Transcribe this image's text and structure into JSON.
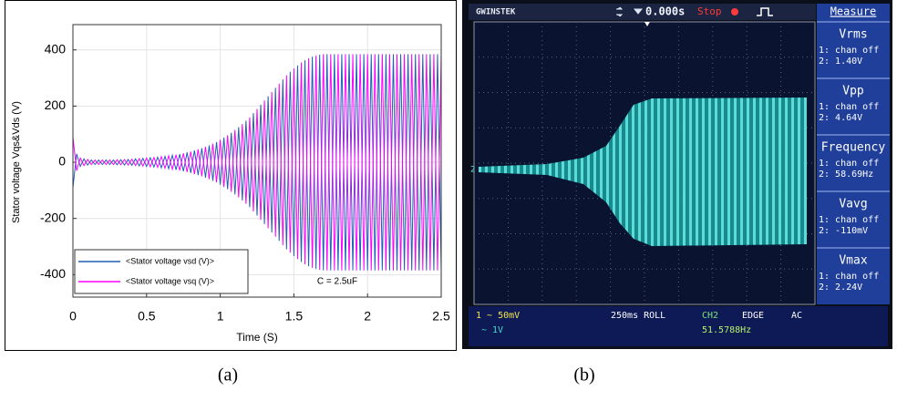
{
  "chart_data": {
    "type": "line",
    "x_label": "Time (S)",
    "y_label": "Stator voltage Vqs&Vds (V)",
    "annotation": "C = 2.5uF",
    "xlim": [
      0,
      2.5
    ],
    "ylim": [
      -480,
      490
    ],
    "xticks": [
      0,
      0.5,
      1,
      1.5,
      2,
      2.5
    ],
    "yticks": [
      -400,
      -200,
      0,
      200,
      400
    ],
    "grid": true,
    "legend_position": "lower-left",
    "x": [
      0,
      0.025,
      0.05,
      0.075,
      0.1,
      0.125,
      0.15,
      0.175,
      0.2,
      0.225,
      0.25,
      0.275,
      0.3,
      0.325,
      0.35,
      0.375,
      0.4,
      0.425,
      0.45,
      0.475,
      0.5,
      0.525,
      0.55,
      0.575,
      0.6,
      0.625,
      0.65,
      0.675,
      0.7,
      0.725,
      0.75,
      0.775,
      0.8,
      0.825,
      0.85,
      0.875,
      0.9,
      0.925,
      0.95,
      0.975,
      1,
      1.025,
      1.05,
      1.075,
      1.1,
      1.125,
      1.15,
      1.175,
      1.2,
      1.225,
      1.25,
      1.275,
      1.3,
      1.325,
      1.35,
      1.375,
      1.4,
      1.425,
      1.45,
      1.475,
      1.5,
      1.525,
      1.55,
      1.575,
      1.6,
      1.625,
      1.65,
      1.675,
      1.7,
      1.725,
      1.75,
      1.775,
      1.8,
      1.825,
      1.85,
      1.875,
      1.9,
      1.925,
      1.95,
      1.975,
      2,
      2.025,
      2.05,
      2.075,
      2.1,
      2.125,
      2.15,
      2.175,
      2.2,
      2.225,
      2.25,
      2.275,
      2.3,
      2.325,
      2.35,
      2.375,
      2.4,
      2.425,
      2.45,
      2.475,
      2.5
    ],
    "series": [
      {
        "name": "<Stator voltage vsd (V)>",
        "color": "#1f5fb4",
        "values": [
          -90,
          30,
          -15,
          12,
          -10,
          8,
          -8,
          8,
          -8,
          8,
          -8,
          8,
          -9,
          9,
          -10,
          10,
          -11,
          12,
          -13,
          14,
          -15,
          16,
          -17,
          18,
          -20,
          21,
          -23,
          25,
          -27,
          29,
          -32,
          35,
          -38,
          42,
          -46,
          50,
          -55,
          60,
          -66,
          72,
          -80,
          88,
          -96,
          105,
          -115,
          125,
          -136,
          148,
          -160,
          175,
          -190,
          205,
          -220,
          235,
          -250,
          265,
          -280,
          295,
          -310,
          322,
          -334,
          345,
          -355,
          363,
          -370,
          376,
          -380,
          383,
          -385,
          385,
          -385,
          385,
          -385,
          385,
          -385,
          385,
          -385,
          385,
          -385,
          385,
          -385,
          385,
          -385,
          385,
          -385,
          385,
          -385,
          385,
          -385,
          385,
          -385,
          385,
          -385,
          385,
          -385,
          385,
          -385,
          385,
          -385,
          385,
          -385
        ]
      },
      {
        "name": "<Stator voltage vsq (V)>",
        "color": "#ff00ff",
        "values": [
          90,
          -30,
          15,
          -12,
          10,
          -8,
          8,
          -8,
          8,
          -8,
          8,
          -8,
          9,
          -9,
          10,
          -10,
          11,
          -12,
          13,
          -14,
          15,
          -16,
          17,
          -18,
          20,
          -21,
          23,
          -25,
          27,
          -29,
          32,
          -35,
          38,
          -42,
          46,
          -50,
          55,
          -60,
          66,
          -72,
          80,
          -88,
          96,
          -105,
          115,
          -125,
          136,
          -148,
          160,
          -175,
          190,
          -205,
          220,
          -235,
          250,
          -265,
          280,
          -295,
          310,
          -322,
          334,
          -345,
          355,
          -363,
          370,
          -376,
          380,
          -383,
          385,
          -385,
          385,
          -385,
          385,
          -385,
          385,
          -385,
          385,
          -385,
          385,
          -385,
          385,
          -385,
          385,
          -385,
          385,
          -385,
          385,
          -385,
          385,
          -385,
          385,
          -385,
          385,
          -385,
          385,
          -385,
          385,
          -385,
          385,
          -385,
          385
        ]
      }
    ]
  },
  "scope": {
    "brand": "GWINSTEK",
    "time_offset": "0.000s",
    "status": "Stop",
    "measure_title": "Measure",
    "measurements": [
      {
        "name": "Vrms",
        "lines": [
          "1: chan off",
          "2: 1.40V"
        ]
      },
      {
        "name": "Vpp",
        "lines": [
          "1: chan off",
          "2: 4.64V"
        ]
      },
      {
        "name": "Frequency",
        "lines": [
          "1: chan off",
          "2: 58.69Hz"
        ]
      },
      {
        "name": "Vavg",
        "lines": [
          "1: chan off",
          "2: -110mV"
        ]
      },
      {
        "name": "Vmax",
        "lines": [
          "1: chan off",
          "2: 2.24V"
        ]
      }
    ],
    "channel_marker": "2",
    "ch1_scale": "1 ~ 50mV",
    "ch2_scale": "~ 1V",
    "timebase": "250ms ROLL",
    "trigger_source": "CH2",
    "trigger_type": "EDGE",
    "coupling": "AC",
    "frequency": "51.5788Hz"
  },
  "captions": [
    "(a)",
    "(b)"
  ]
}
